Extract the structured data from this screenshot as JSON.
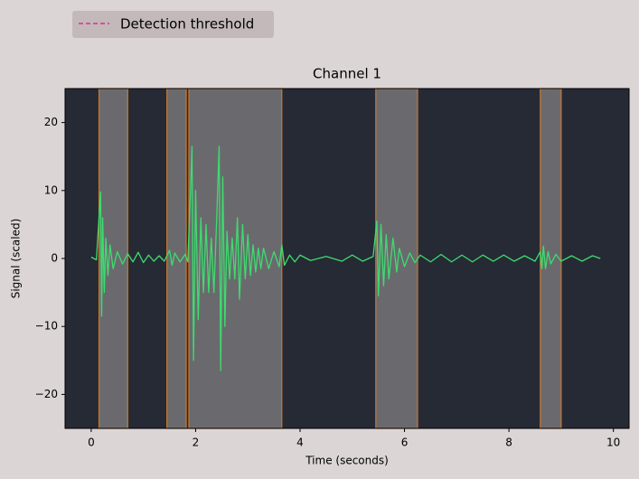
{
  "chart_data": {
    "type": "line",
    "title": "Channel 1",
    "xlabel": "Time (seconds)",
    "ylabel": "Signal (scaled)",
    "xlim": [
      -0.5,
      10.3
    ],
    "ylim": [
      -25,
      25
    ],
    "xticks": [
      0,
      2,
      4,
      6,
      8,
      10
    ],
    "yticks": [
      {
        "value": -20,
        "label": "−20"
      },
      {
        "value": -10,
        "label": "−10"
      },
      0,
      10,
      20
    ],
    "grid": false,
    "threshold": {
      "name": "Detection threshold",
      "color": "#e0307f",
      "style": "dashed"
    },
    "regions": {
      "color": "#6a6a6e",
      "edge_color": "#c8782e",
      "spans": [
        [
          0.15,
          0.7
        ],
        [
          1.45,
          1.82
        ],
        [
          1.87,
          3.65
        ],
        [
          5.45,
          6.25
        ],
        [
          8.6,
          9.0
        ]
      ]
    },
    "series": [
      {
        "color": "#3ddc6e",
        "x": [
          0,
          0.1,
          0.18,
          0.2,
          0.22,
          0.25,
          0.28,
          0.32,
          0.36,
          0.42,
          0.5,
          0.6,
          0.7,
          0.8,
          0.9,
          1.0,
          1.1,
          1.2,
          1.3,
          1.4,
          1.5,
          1.55,
          1.6,
          1.7,
          1.8,
          1.85,
          1.9,
          1.93,
          1.96,
          2.0,
          2.05,
          2.1,
          2.15,
          2.2,
          2.25,
          2.3,
          2.35,
          2.4,
          2.45,
          2.48,
          2.52,
          2.56,
          2.6,
          2.65,
          2.7,
          2.75,
          2.8,
          2.84,
          2.9,
          2.95,
          3.0,
          3.05,
          3.1,
          3.15,
          3.2,
          3.25,
          3.3,
          3.4,
          3.5,
          3.6,
          3.65,
          3.7,
          3.8,
          3.9,
          4.0,
          4.2,
          4.5,
          4.8,
          5.0,
          5.2,
          5.4,
          5.47,
          5.5,
          5.55,
          5.6,
          5.65,
          5.7,
          5.78,
          5.85,
          5.9,
          6.0,
          6.1,
          6.2,
          6.3,
          6.5,
          6.7,
          6.9,
          7.1,
          7.3,
          7.5,
          7.7,
          7.9,
          8.1,
          8.3,
          8.5,
          8.6,
          8.63,
          8.66,
          8.7,
          8.75,
          8.8,
          8.9,
          9.0,
          9.2,
          9.4,
          9.6,
          9.75
        ],
        "values": [
          0.2,
          -0.2,
          9.8,
          -8.5,
          6,
          -5,
          3,
          -2.5,
          2,
          -1.5,
          1,
          -0.8,
          0.7,
          -0.5,
          0.9,
          -0.6,
          0.5,
          -0.4,
          0.4,
          -0.4,
          1.2,
          -1,
          0.8,
          -0.5,
          0.6,
          -0.5,
          9.5,
          16.5,
          -15,
          10,
          -9,
          6,
          -5,
          5,
          -5,
          3,
          -5,
          5,
          16.5,
          -16.5,
          12,
          -10,
          4,
          -3,
          3,
          -3,
          6,
          -6,
          5,
          -3,
          3.5,
          -2.5,
          2,
          -2,
          1.5,
          -1.5,
          1.5,
          -1.5,
          1,
          -1.2,
          2,
          -1,
          0.5,
          -0.5,
          0.5,
          -0.3,
          0.3,
          -0.4,
          0.5,
          -0.4,
          0.3,
          5.5,
          -5.5,
          5,
          -4,
          3.5,
          -3,
          3,
          -2,
          1.5,
          -1.2,
          0.8,
          -0.6,
          0.5,
          -0.5,
          0.6,
          -0.5,
          0.5,
          -0.5,
          0.5,
          -0.4,
          0.5,
          -0.4,
          0.4,
          -0.4,
          1,
          -1.5,
          1.8,
          -1.5,
          1,
          -0.8,
          0.6,
          -0.4,
          0.4,
          -0.4,
          0.4,
          0
        ]
      }
    ]
  }
}
